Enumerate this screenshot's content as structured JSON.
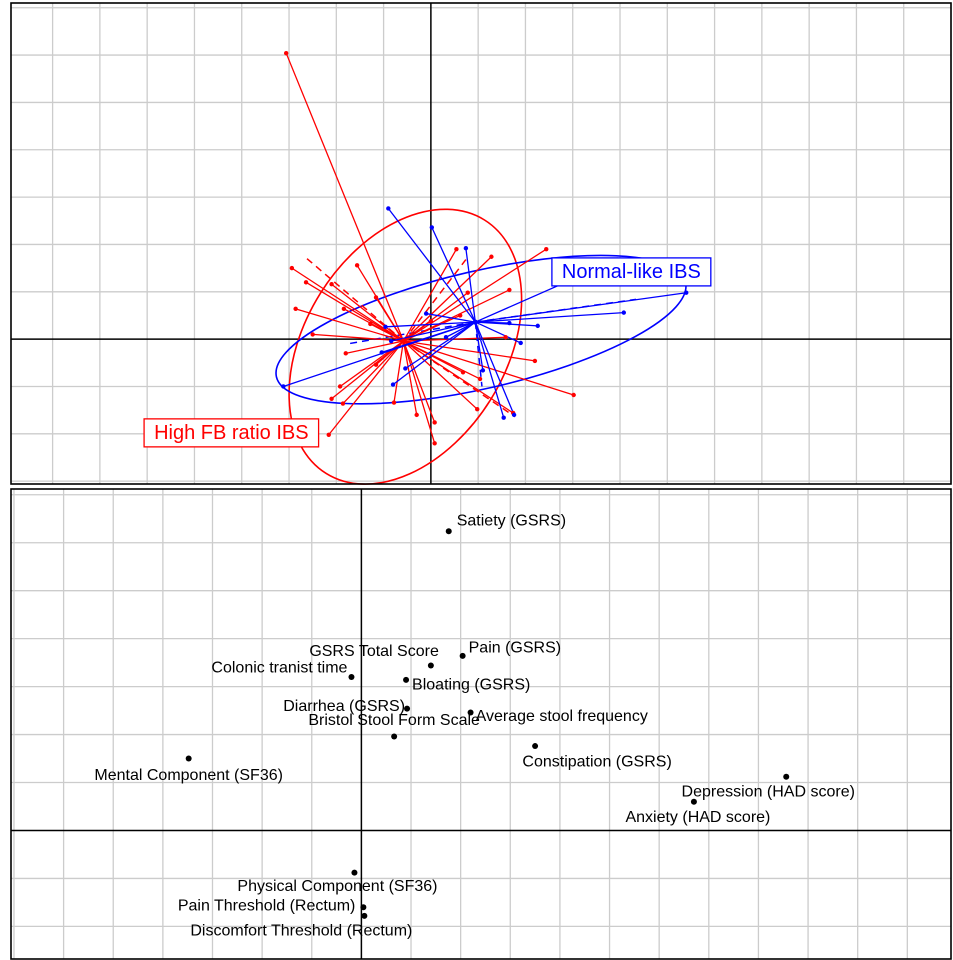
{
  "chart_data": [
    {
      "type": "scatter",
      "title": "",
      "xlabel": "",
      "ylabel": "",
      "grid": true,
      "legend_placement": "none",
      "colors": {
        "high_fb": "#ff0000",
        "normal_like": "#0000ff",
        "axis": "#000000",
        "grid": "#cccccc"
      },
      "series": [
        {
          "name": "High FB ratio IBS",
          "color": "#ff0000",
          "centroid": [
            -0.29,
            -0.02
          ],
          "points": [
            [
              -1.53,
              3.02
            ],
            [
              -1.47,
              0.75
            ],
            [
              -1.32,
              0.6
            ],
            [
              -1.43,
              0.32
            ],
            [
              -1.05,
              0.58
            ],
            [
              -0.78,
              0.78
            ],
            [
              -0.58,
              0.44
            ],
            [
              -0.92,
              0.32
            ],
            [
              -0.64,
              0.16
            ],
            [
              -1.25,
              0.05
            ],
            [
              -0.9,
              -0.15
            ],
            [
              -0.96,
              -0.5
            ],
            [
              -0.93,
              -0.68
            ],
            [
              -1.08,
              -1.01
            ],
            [
              -1.05,
              -0.63
            ],
            [
              -0.58,
              -0.27
            ],
            [
              -0.39,
              -0.67
            ],
            [
              -0.15,
              -0.8
            ],
            [
              0.04,
              -1.1
            ],
            [
              0.04,
              -0.88
            ],
            [
              0.34,
              -0.35
            ],
            [
              0.52,
              -0.42
            ],
            [
              0.49,
              -0.74
            ],
            [
              0.87,
              -0.78
            ],
            [
              1.51,
              -0.59
            ],
            [
              1.1,
              -0.23
            ],
            [
              0.79,
              0.02
            ],
            [
              0.31,
              0.25
            ],
            [
              0.83,
              0.52
            ],
            [
              0.64,
              0.87
            ],
            [
              0.39,
              0.49
            ],
            [
              1.22,
              0.95
            ],
            [
              0.27,
              0.95
            ],
            [
              0.0,
              0.19
            ]
          ]
        },
        {
          "name": "Normal-like IBS",
          "color": "#0000ff",
          "centroid": [
            0.47,
            0.18
          ],
          "points": [
            [
              -0.45,
              1.38
            ],
            [
              0.01,
              1.18
            ],
            [
              0.37,
              0.96
            ],
            [
              1.97,
              0.84
            ],
            [
              2.04,
              0.28
            ],
            [
              2.7,
              0.49
            ],
            [
              0.83,
              0.17
            ],
            [
              1.13,
              0.14
            ],
            [
              0.95,
              -0.04
            ],
            [
              -0.42,
              -0.02
            ],
            [
              -1.56,
              -0.5
            ],
            [
              -0.4,
              -0.48
            ],
            [
              -0.27,
              -0.31
            ],
            [
              -0.52,
              -0.14
            ],
            [
              -0.05,
              0.27
            ],
            [
              0.16,
              0.02
            ],
            [
              -0.48,
              0.13
            ],
            [
              0.55,
              -0.33
            ],
            [
              0.88,
              -0.8
            ],
            [
              0.77,
              -0.83
            ]
          ]
        }
      ],
      "ellipses": [
        {
          "series": "High FB ratio IBS",
          "center": [
            -0.27,
            -0.08
          ],
          "rx": 1.58,
          "ry": 1.06,
          "angle_deg": -58
        },
        {
          "series": "Normal-like IBS",
          "center": [
            0.53,
            0.1
          ],
          "rx": 2.22,
          "ry": 0.62,
          "angle_deg": -13
        }
      ],
      "dashed_directions": [
        {
          "series": "High FB ratio IBS",
          "to": [
            -1.31,
            0.85
          ]
        },
        {
          "series": "High FB ratio IBS",
          "to": [
            0.37,
            0.84
          ]
        },
        {
          "series": "High FB ratio IBS",
          "to": [
            0.89,
            -0.82
          ]
        },
        {
          "series": "Normal-like IBS",
          "to": [
            2.17,
            0.42
          ]
        },
        {
          "series": "Normal-like IBS",
          "to": [
            0.54,
            -0.5
          ]
        },
        {
          "series": "Normal-like IBS",
          "to": [
            -0.88,
            -0.05
          ]
        }
      ],
      "group_labels": [
        {
          "text": "Normal-like IBS",
          "color": "#0000ff",
          "anchor": [
            2.12,
            0.71
          ]
        },
        {
          "text": "High FB ratio IBS",
          "color": "#ff0000",
          "anchor": [
            -2.11,
            -0.99
          ]
        }
      ],
      "xlim": [
        -4.44,
        5.5
      ],
      "ylim": [
        -1.53,
        3.55
      ]
    },
    {
      "type": "scatter",
      "title": "",
      "xlabel": "",
      "ylabel": "",
      "grid": true,
      "legend_placement": "none",
      "color": "#000000",
      "points": [
        {
          "label": "Satiety (GSRS)",
          "x": 0.88,
          "y": 3.12
        },
        {
          "label": "Pain (GSRS)",
          "x": 1.02,
          "y": 1.82
        },
        {
          "label": "GSRS Total Score",
          "x": 0.7,
          "y": 1.72
        },
        {
          "label": "Colonic tranist time",
          "x": -0.1,
          "y": 1.6
        },
        {
          "label": "Bloating (GSRS)",
          "x": 0.45,
          "y": 1.57
        },
        {
          "label": "Diarrhea (GSRS)",
          "x": 0.46,
          "y": 1.27
        },
        {
          "label": "Average stool frequency",
          "x": 1.1,
          "y": 1.23
        },
        {
          "label": "Bristol Stool Form Scale",
          "x": 0.33,
          "y": 0.98
        },
        {
          "label": "Constipation (GSRS)",
          "x": 1.75,
          "y": 0.88
        },
        {
          "label": "Mental Component (SF36)",
          "x": -1.74,
          "y": 0.75
        },
        {
          "label": "Depression (HAD score)",
          "x": 4.28,
          "y": 0.56
        },
        {
          "label": "Anxiety (HAD score)",
          "x": 3.35,
          "y": 0.3
        },
        {
          "label": "Physical Component (SF36)",
          "x": -0.07,
          "y": -0.44
        },
        {
          "label": "Pain Threshold (Rectum)",
          "x": 0.02,
          "y": -0.8
        },
        {
          "label": "Discomfort Threshold (Rectum)",
          "x": 0.03,
          "y": -0.89
        }
      ],
      "xlim": [
        -3.53,
        5.94
      ],
      "ylim": [
        -1.34,
        3.56
      ]
    }
  ]
}
